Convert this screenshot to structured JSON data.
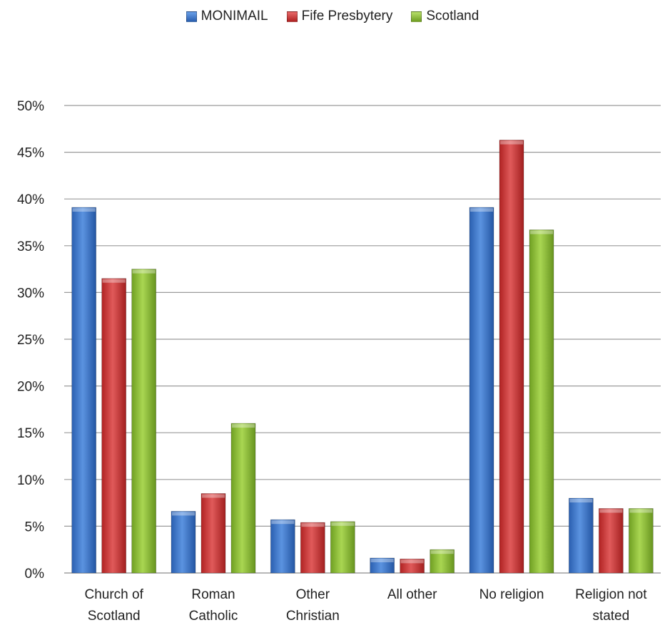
{
  "chart_data": {
    "type": "bar",
    "categories": [
      [
        "Church of",
        "Scotland"
      ],
      [
        "Roman",
        "Catholic"
      ],
      [
        "Other",
        "Christian"
      ],
      [
        "All other"
      ],
      [
        "No religion"
      ],
      [
        "Religion not",
        "stated"
      ]
    ],
    "series": [
      {
        "name": "MONIMAIL",
        "color": "#3a73c8",
        "values": [
          39.1,
          6.6,
          5.7,
          1.6,
          39.1,
          8.0
        ]
      },
      {
        "name": "Fife Presbytery",
        "color": "#cc3333",
        "values": [
          31.5,
          8.5,
          5.4,
          1.5,
          46.3,
          6.9
        ]
      },
      {
        "name": "Scotland",
        "color": "#8dbd3a",
        "values": [
          32.5,
          16.0,
          5.5,
          2.5,
          36.7,
          6.9
        ]
      }
    ],
    "yticks": [
      "0%",
      "5%",
      "10%",
      "15%",
      "20%",
      "25%",
      "30%",
      "35%",
      "40%",
      "45%",
      "50%"
    ],
    "ylim": [
      0,
      50
    ],
    "grid": true,
    "legend_position": "top"
  }
}
